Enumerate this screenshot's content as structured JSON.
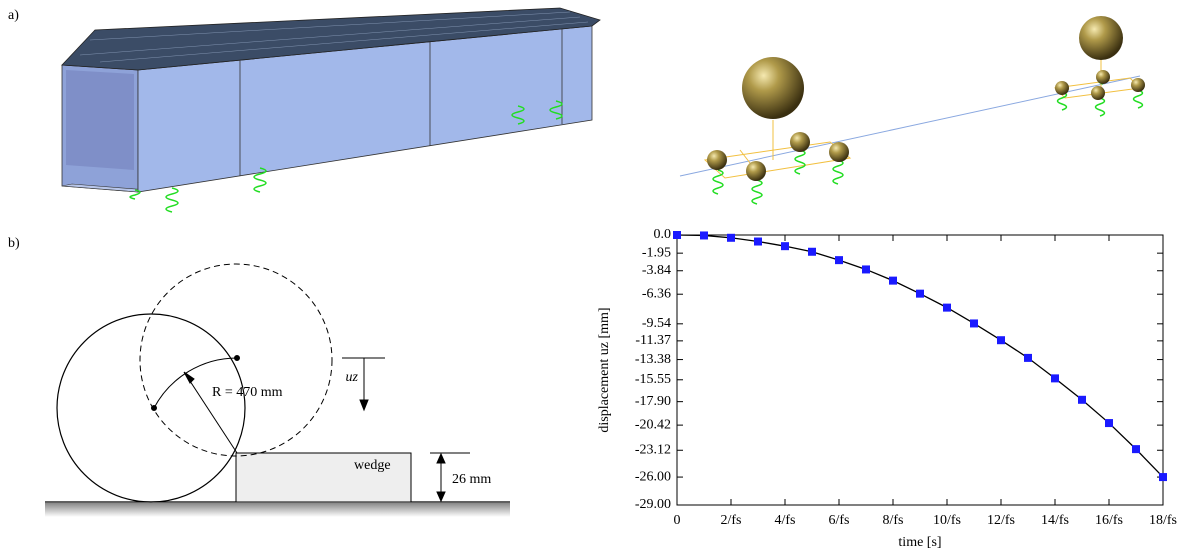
{
  "panels": {
    "a": "a)",
    "b": "b)"
  },
  "diagram": {
    "radius_label": "R = 470 mm",
    "displacement_label": "uz",
    "wedge_label": "wedge",
    "height_label": "26 mm"
  },
  "chart_data": {
    "type": "line",
    "xlabel": "time [s]",
    "ylabel": "displacement uz [mm]",
    "x": [
      0,
      1,
      2,
      3,
      4,
      5,
      6,
      7,
      8,
      9,
      10,
      11,
      12,
      13,
      14,
      15,
      16,
      17,
      18
    ],
    "series": [
      {
        "color": "#1a1aff",
        "line_color": "#000000",
        "values": [
          0,
          -0.05,
          -0.3,
          -0.7,
          -1.2,
          -1.8,
          -2.7,
          -3.7,
          -4.9,
          -6.3,
          -7.8,
          -9.5,
          -11.3,
          -13.2,
          -15.4,
          -17.7,
          -20.2,
          -23.0,
          -26.0
        ]
      }
    ],
    "xlim": [
      0,
      18
    ],
    "xticks": [
      0,
      {
        "value": 2,
        "label": "2/fs"
      },
      {
        "value": 4,
        "label": "4/fs"
      },
      {
        "value": 6,
        "label": "6/fs"
      },
      {
        "value": 8,
        "label": "8/fs"
      },
      {
        "value": 10,
        "label": "10/fs"
      },
      {
        "value": 12,
        "label": "12/fs"
      },
      {
        "value": 14,
        "label": "14/fs"
      },
      {
        "value": 16,
        "label": "16/fs"
      },
      {
        "value": 18,
        "label": "18/fs"
      }
    ],
    "ylim": [
      -29,
      0
    ],
    "yticks": [
      {
        "value": 0,
        "label": "0.0"
      },
      -1.95,
      -3.84,
      -6.36,
      -9.54,
      -11.37,
      -13.38,
      -15.55,
      {
        "value": -17.9,
        "label": "-17.90"
      },
      -20.42,
      -23.12,
      {
        "value": -26,
        "label": "-26.00"
      },
      {
        "value": -29,
        "label": "-29.00"
      }
    ]
  }
}
